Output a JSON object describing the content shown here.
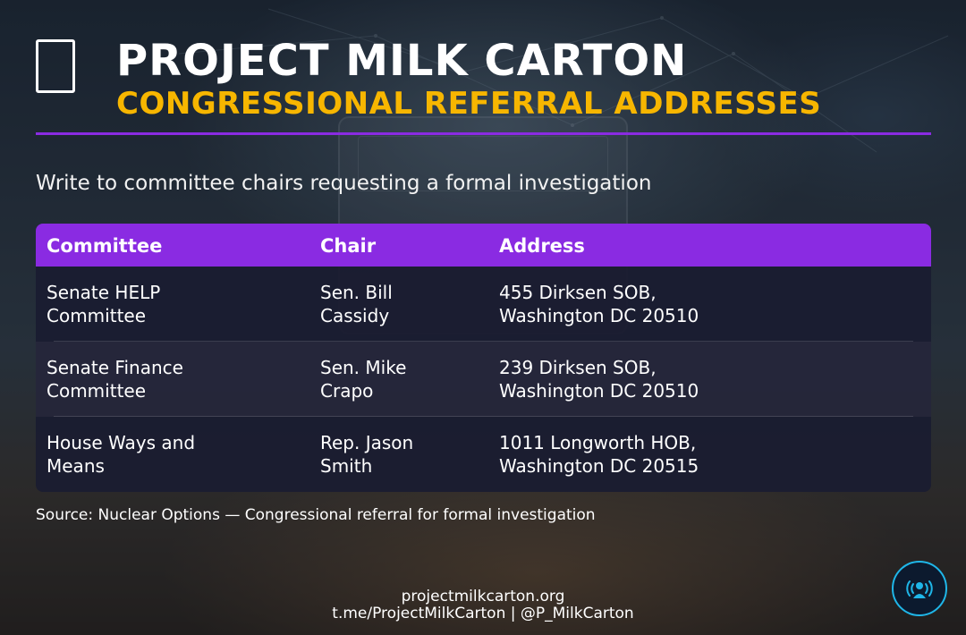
{
  "header": {
    "brand_icon": "milk-carton-icon",
    "title": "PROJECT MILK CARTON",
    "subtitle": "CONGRESSIONAL REFERRAL ADDRESSES",
    "accent_color": "#8a2be2",
    "subtitle_color": "#f7b600"
  },
  "intro": "Write to committee chairs requesting a formal investigation",
  "table": {
    "headers": [
      "Committee",
      "Chair",
      "Address"
    ],
    "rows": [
      {
        "committee": [
          "Senate HELP",
          "Committee"
        ],
        "chair": [
          "Sen. Bill",
          "Cassidy"
        ],
        "address": [
          "455 Dirksen SOB,",
          "Washington DC 20510"
        ]
      },
      {
        "committee": [
          "Senate Finance",
          "Committee"
        ],
        "chair": [
          "Sen. Mike",
          "Crapo"
        ],
        "address": [
          "239 Dirksen SOB,",
          "Washington DC 20510"
        ]
      },
      {
        "committee": [
          "House Ways and",
          "Means"
        ],
        "chair": [
          "Rep. Jason",
          "Smith"
        ],
        "address": [
          "1011 Longworth HOB,",
          "Washington DC 20515"
        ]
      }
    ]
  },
  "source": "Source: Nuclear Options — Congressional referral for formal investigation",
  "footer": {
    "website": "projectmilkcarton.org",
    "social": "t.me/ProjectMilkCarton | @P_MilkCarton"
  },
  "badge": {
    "icon": "broadcast-person-icon",
    "color": "#1fb6e8"
  }
}
